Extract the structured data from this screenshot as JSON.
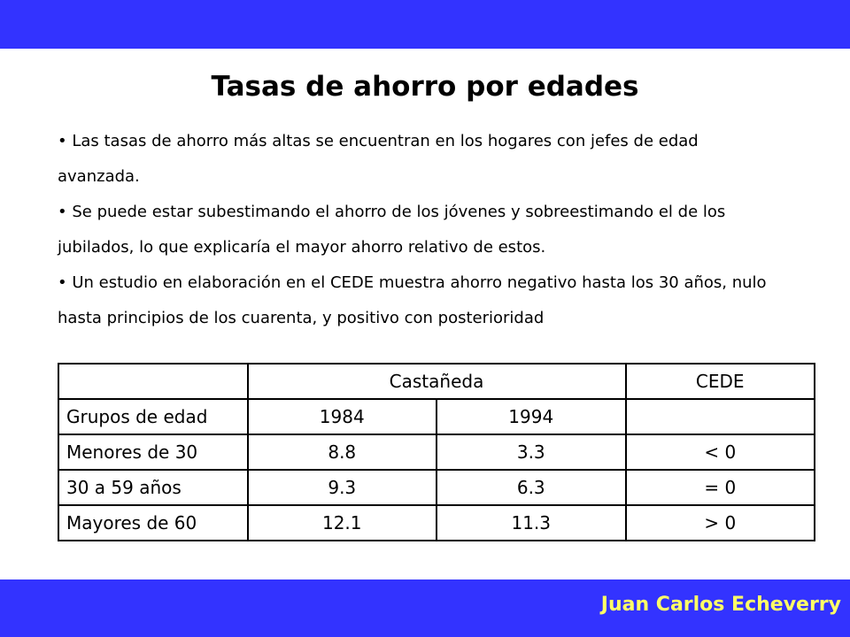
{
  "header": {
    "title": "Tasas de ahorro por edades"
  },
  "bullets": [
    "Las tasas de ahorro más altas se encuentran en los hogares con jefes de edad avanzada.",
    "Se puede estar subestimando el ahorro de los jóvenes y sobreestimando el de los jubilados, lo que explicaría el mayor ahorro relativo de estos.",
    "Un estudio en elaboración en el CEDE muestra ahorro negativo hasta los 30 años, nulo hasta principios de los cuarenta, y positivo con posterioridad"
  ],
  "table": {
    "header": [
      "Castañeda",
      "CEDE"
    ],
    "subheader": {
      "label": "Grupos de edad",
      "years": [
        "1984",
        "1994"
      ]
    },
    "rows": [
      [
        "Menores de 30",
        "8.8",
        "3.3",
        "< 0"
      ],
      [
        "30 a 59 años",
        "9.3",
        "6.3",
        "= 0"
      ],
      [
        "Mayores de 60",
        "12.1",
        "11.3",
        "> 0"
      ]
    ]
  },
  "footer": {
    "author": "Juan Carlos Echeverry"
  }
}
